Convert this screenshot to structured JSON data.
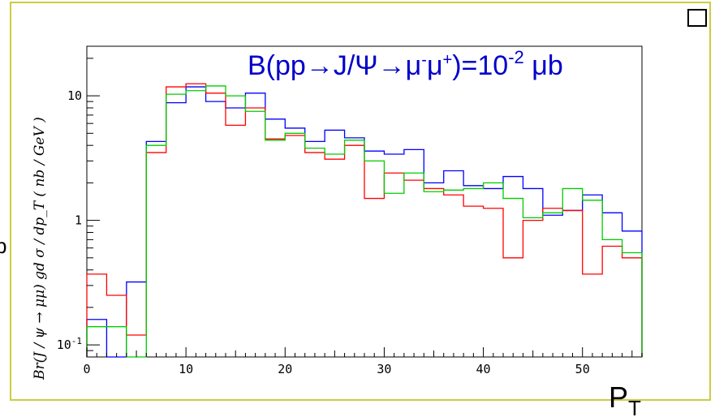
{
  "chart_data": {
    "type": "step-histogram",
    "annotation": {
      "prefix": "B(pp→J/Ψ→μ",
      "sup1": "-",
      "mid": "μ",
      "sup2": "+",
      "middle": ")=10",
      "exp": "-2",
      "suffix": " μb"
    },
    "ylabel": "Br(J / ψ → μμ) gd σ / dp_T ( nb / GeV )",
    "xlabel": {
      "main": "P",
      "sub": "T"
    },
    "stray_text": "b",
    "xlim": [
      0,
      56
    ],
    "ylim": [
      0.08,
      25
    ],
    "yscale": "log",
    "x_ticks": [
      {
        "v": 0,
        "label": "0"
      },
      {
        "v": 10,
        "label": "10"
      },
      {
        "v": 20,
        "label": "20"
      },
      {
        "v": 30,
        "label": "30"
      },
      {
        "v": 40,
        "label": "40"
      },
      {
        "v": 50,
        "label": "50"
      }
    ],
    "y_ticks": [
      {
        "v": 0.1,
        "base": "10",
        "exp": "-1"
      },
      {
        "v": 1,
        "base": "1",
        "exp": ""
      },
      {
        "v": 10,
        "base": "10",
        "exp": ""
      }
    ],
    "bin_edges": [
      0,
      2,
      4,
      6,
      8,
      10,
      12,
      14,
      16,
      18,
      20,
      22,
      24,
      26,
      28,
      30,
      32,
      34,
      36,
      38,
      40,
      42,
      44,
      46,
      48,
      50,
      52,
      54,
      56
    ],
    "series": [
      {
        "color": "#0000ff",
        "values": [
          0.16,
          0.08,
          0.32,
          4.3,
          8.8,
          11.8,
          9.0,
          8.0,
          10.5,
          6.5,
          5.5,
          4.3,
          5.3,
          4.6,
          3.6,
          3.4,
          3.7,
          2.0,
          2.5,
          1.9,
          1.8,
          2.25,
          1.8,
          1.1,
          1.2,
          1.6,
          1.15,
          0.82
        ]
      },
      {
        "color": "#ff0000",
        "values": [
          0.37,
          0.25,
          0.12,
          3.5,
          11.8,
          12.5,
          10.5,
          5.8,
          8.0,
          4.5,
          4.8,
          3.5,
          3.1,
          4.0,
          1.5,
          2.4,
          2.1,
          1.8,
          1.6,
          1.3,
          1.25,
          0.5,
          1.0,
          1.25,
          1.2,
          0.37,
          0.62,
          0.5
        ]
      },
      {
        "color": "#00cc00",
        "values": [
          0.14,
          0.14,
          0.08,
          4.0,
          10.3,
          11.0,
          12.0,
          10.0,
          7.5,
          4.4,
          5.0,
          3.8,
          3.4,
          4.4,
          3.0,
          1.65,
          2.4,
          1.7,
          1.75,
          1.8,
          2.0,
          1.5,
          1.05,
          1.15,
          1.8,
          1.45,
          0.7,
          0.55
        ]
      }
    ]
  }
}
